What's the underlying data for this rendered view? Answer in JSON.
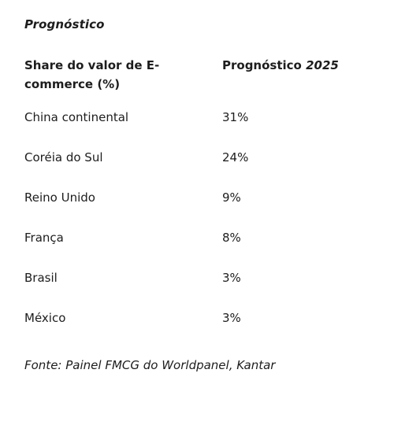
{
  "heading": "Prognóstico",
  "table": {
    "header": {
      "col1": "Share do valor de E-commerce (%)",
      "col2_prefix": "Prognóstico ",
      "col2_year": "2025"
    },
    "rows": [
      {
        "country": "China continental",
        "value": "31%"
      },
      {
        "country": "Coréia do Sul",
        "value": "24%"
      },
      {
        "country": "Reino Unido",
        "value": "9%"
      },
      {
        "country": "França",
        "value": "8%"
      },
      {
        "country": "Brasil",
        "value": "3%"
      },
      {
        "country": "México",
        "value": "3%"
      }
    ]
  },
  "source": "Fonte: Painel FMCG do Worldpanel, Kantar"
}
